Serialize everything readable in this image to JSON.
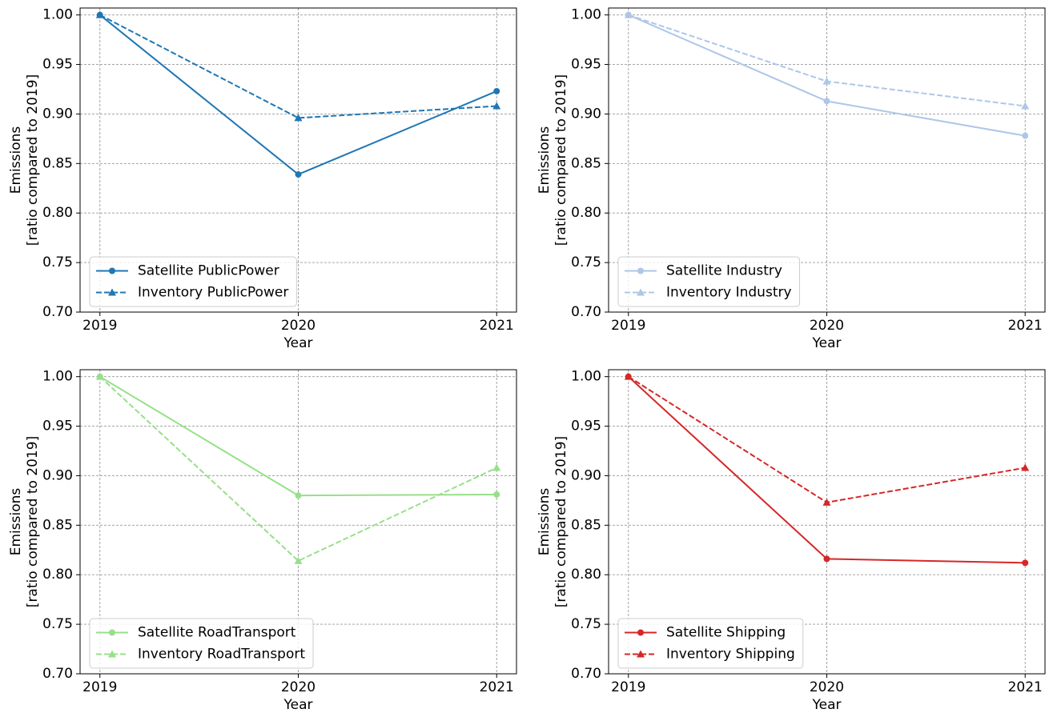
{
  "chart_data": [
    {
      "type": "line",
      "ylabel": [
        "Emissions",
        "[ratio compared to 2019]"
      ],
      "xlabel": "Year",
      "x": [
        2019,
        2020,
        2021
      ],
      "xlim": [
        2018.9,
        2021.1
      ],
      "xticks": [
        2019,
        2020,
        2021
      ],
      "ylim": [
        0.7,
        1.007
      ],
      "yticks": [
        {
          "value": 0.7,
          "label": "0.70"
        },
        {
          "value": 0.75,
          "label": "0.75"
        },
        {
          "value": 0.8,
          "label": "0.80"
        },
        {
          "value": 0.85,
          "label": "0.85"
        },
        {
          "value": 0.9,
          "label": "0.90"
        },
        {
          "value": 0.95,
          "label": "0.95"
        },
        {
          "value": 1.0,
          "label": "1.00"
        }
      ],
      "grid": true,
      "legend": "lower left",
      "series": [
        {
          "name": "Satellite PublicPower",
          "color": "#1f77b4",
          "dash": false,
          "marker": "circle",
          "values": [
            1.0,
            0.839,
            0.923
          ]
        },
        {
          "name": "Inventory PublicPower",
          "color": "#1f77b4",
          "dash": true,
          "marker": "triangle",
          "values": [
            1.0,
            0.896,
            0.908
          ]
        }
      ]
    },
    {
      "type": "line",
      "ylabel": [
        "Emissions",
        "[ratio compared to 2019]"
      ],
      "xlabel": "Year",
      "x": [
        2019,
        2020,
        2021
      ],
      "xlim": [
        2018.9,
        2021.1
      ],
      "xticks": [
        2019,
        2020,
        2021
      ],
      "ylim": [
        0.7,
        1.007
      ],
      "yticks": [
        {
          "value": 0.7,
          "label": "0.70"
        },
        {
          "value": 0.75,
          "label": "0.75"
        },
        {
          "value": 0.8,
          "label": "0.80"
        },
        {
          "value": 0.85,
          "label": "0.85"
        },
        {
          "value": 0.9,
          "label": "0.90"
        },
        {
          "value": 0.95,
          "label": "0.95"
        },
        {
          "value": 1.0,
          "label": "1.00"
        }
      ],
      "grid": true,
      "legend": "lower left",
      "series": [
        {
          "name": "Satellite Industry",
          "color": "#aec7e8",
          "dash": false,
          "marker": "circle",
          "values": [
            1.0,
            0.913,
            0.878
          ]
        },
        {
          "name": "Inventory Industry",
          "color": "#aec7e8",
          "dash": true,
          "marker": "triangle",
          "values": [
            1.0,
            0.933,
            0.908
          ]
        }
      ]
    },
    {
      "type": "line",
      "ylabel": [
        "Emissions",
        "[ratio compared to 2019]"
      ],
      "xlabel": "Year",
      "x": [
        2019,
        2020,
        2021
      ],
      "xlim": [
        2018.9,
        2021.1
      ],
      "xticks": [
        2019,
        2020,
        2021
      ],
      "ylim": [
        0.7,
        1.007
      ],
      "yticks": [
        {
          "value": 0.7,
          "label": "0.70"
        },
        {
          "value": 0.75,
          "label": "0.75"
        },
        {
          "value": 0.8,
          "label": "0.80"
        },
        {
          "value": 0.85,
          "label": "0.85"
        },
        {
          "value": 0.9,
          "label": "0.90"
        },
        {
          "value": 0.95,
          "label": "0.95"
        },
        {
          "value": 1.0,
          "label": "1.00"
        }
      ],
      "grid": true,
      "legend": "lower left",
      "series": [
        {
          "name": "Satellite RoadTransport",
          "color": "#98df8a",
          "dash": false,
          "marker": "circle",
          "values": [
            1.0,
            0.88,
            0.881
          ]
        },
        {
          "name": "Inventory RoadTransport",
          "color": "#98df8a",
          "dash": true,
          "marker": "triangle",
          "values": [
            1.0,
            0.814,
            0.908
          ]
        }
      ]
    },
    {
      "type": "line",
      "ylabel": [
        "Emissions",
        "[ratio compared to 2019]"
      ],
      "xlabel": "Year",
      "x": [
        2019,
        2020,
        2021
      ],
      "xlim": [
        2018.9,
        2021.1
      ],
      "xticks": [
        2019,
        2020,
        2021
      ],
      "ylim": [
        0.7,
        1.007
      ],
      "yticks": [
        {
          "value": 0.7,
          "label": "0.70"
        },
        {
          "value": 0.75,
          "label": "0.75"
        },
        {
          "value": 0.8,
          "label": "0.80"
        },
        {
          "value": 0.85,
          "label": "0.85"
        },
        {
          "value": 0.9,
          "label": "0.90"
        },
        {
          "value": 0.95,
          "label": "0.95"
        },
        {
          "value": 1.0,
          "label": "1.00"
        }
      ],
      "grid": true,
      "legend": "lower left",
      "series": [
        {
          "name": "Satellite Shipping",
          "color": "#d62728",
          "dash": false,
          "marker": "circle",
          "values": [
            1.0,
            0.816,
            0.812
          ]
        },
        {
          "name": "Inventory Shipping",
          "color": "#d62728",
          "dash": true,
          "marker": "triangle",
          "values": [
            1.0,
            0.873,
            0.908
          ]
        }
      ]
    }
  ]
}
